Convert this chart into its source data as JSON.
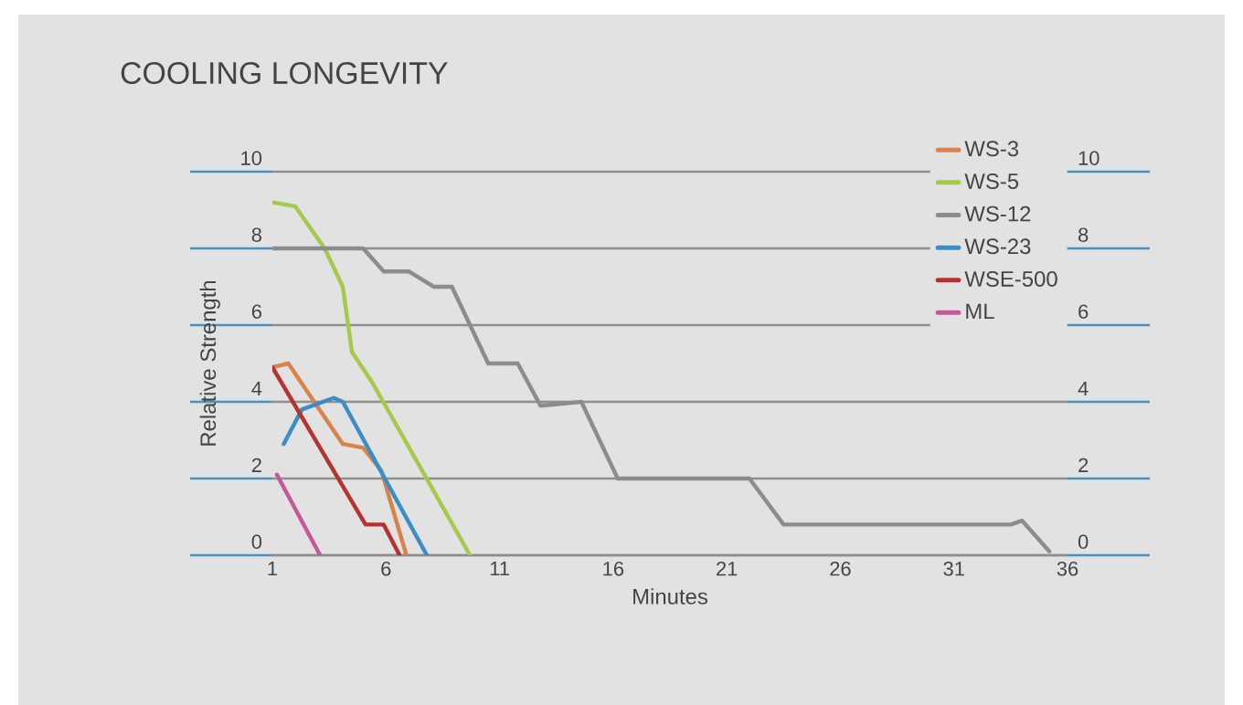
{
  "chart_data": {
    "type": "line",
    "title": "COOLING LONGEVITY",
    "xlabel": "Minutes",
    "ylabel": "Relative Strength",
    "xlim": [
      1,
      36
    ],
    "xticks": [
      1,
      6,
      11,
      16,
      21,
      26,
      31,
      36
    ],
    "ylim": [
      0,
      10
    ],
    "yticks": [
      0,
      2,
      4,
      6,
      8,
      10
    ],
    "y2lim": [
      0,
      10
    ],
    "y2ticks": [
      0,
      2,
      4,
      6,
      8,
      10
    ],
    "grid": "y",
    "legend": "top right",
    "marker": "none",
    "line_style": "solid",
    "series": [
      {
        "name": "WS-3",
        "color": "#d9824a",
        "x": [
          1,
          1.7,
          4.1,
          5,
          5.8,
          6.9
        ],
        "values": [
          4.9,
          5.0,
          2.9,
          2.8,
          2.2,
          0
        ]
      },
      {
        "name": "WS-5",
        "color": "#a5c94a",
        "x": [
          1,
          2,
          3.3,
          4.1,
          4.5,
          5.4,
          9.7
        ],
        "values": [
          9.2,
          9.1,
          8,
          7,
          5.3,
          4.5,
          0
        ]
      },
      {
        "name": "WS-12",
        "color": "#8c8c8c",
        "x": [
          1,
          5,
          5.9,
          7,
          8.1,
          8.9,
          10.5,
          11.8,
          12.8,
          14.6,
          16.2,
          22,
          23.5,
          33.5,
          34,
          35.2
        ],
        "values": [
          8,
          8,
          7.4,
          7.4,
          7,
          7,
          5,
          5,
          3.9,
          4,
          2,
          2,
          0.8,
          0.8,
          0.9,
          0.1
        ]
      },
      {
        "name": "WS-23",
        "color": "#3a8ec4",
        "x": [
          1.5,
          2.3,
          3.7,
          4.1,
          7.8
        ],
        "values": [
          2.9,
          3.8,
          4.1,
          4.0,
          0
        ]
      },
      {
        "name": "WSE-500",
        "color": "#b5322e",
        "x": [
          1,
          5.1,
          5.9,
          6.6
        ],
        "values": [
          4.9,
          0.8,
          0.8,
          0
        ]
      },
      {
        "name": "ML",
        "color": "#c5579b",
        "x": [
          1.2,
          3.1
        ],
        "values": [
          2.1,
          0
        ]
      }
    ]
  }
}
